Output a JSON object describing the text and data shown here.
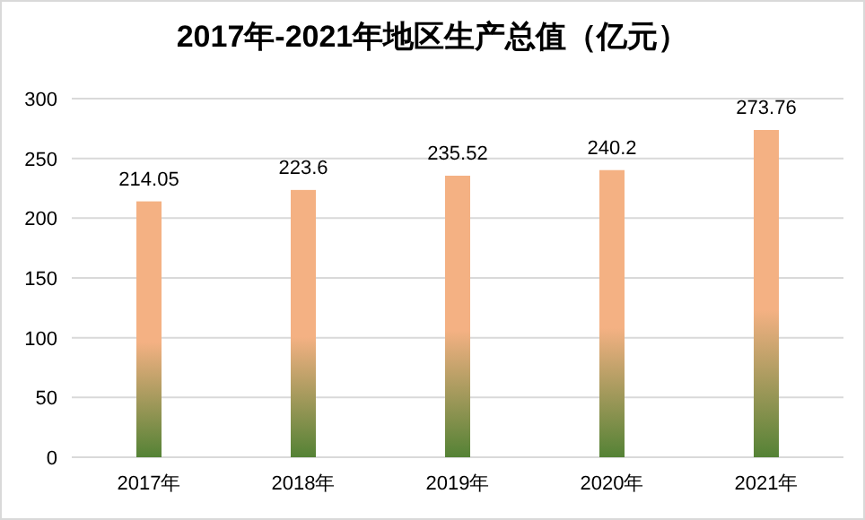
{
  "chart_data": {
    "type": "bar",
    "title": "2017年-2021年地区生产总值（亿元）",
    "categories": [
      "2017年",
      "2018年",
      "2019年",
      "2020年",
      "2021年"
    ],
    "series": [
      {
        "color": "#f4b183",
        "values": [
          214.05,
          223.6,
          235.52,
          240.2,
          273.76
        ]
      }
    ],
    "ylim": [
      0,
      300
    ],
    "yticks": [
      0,
      50,
      100,
      150,
      200,
      250,
      300
    ],
    "grid": "y",
    "data_labels": true
  }
}
